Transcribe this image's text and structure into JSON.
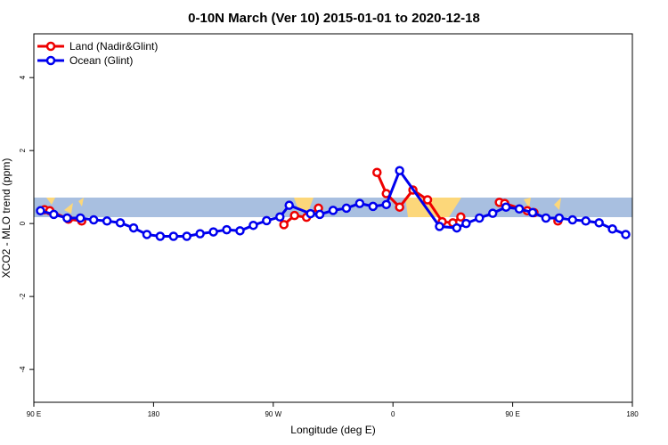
{
  "chart_data": {
    "type": "line",
    "title": "0-10N March (Ver 10)   2015-01-01 to 2020-12-18",
    "x_label": "Longitude (deg E)",
    "y_label": "XCO2 - MLO trend (ppm)",
    "xlim": [
      90,
      540
    ],
    "ylim": [
      -4.9,
      5.2
    ],
    "xticks": [
      {
        "value": 90,
        "label": "90 E"
      },
      180,
      {
        "value": 270,
        "label": "90 W"
      },
      {
        "value": 360,
        "label": "0"
      },
      {
        "value": 450,
        "label": "90 E"
      },
      {
        "value": 540,
        "label": "180"
      }
    ],
    "yticks": [
      -4,
      -2,
      0,
      2,
      4
    ],
    "grid": false,
    "legend": "top-left",
    "series": [
      {
        "name": "Land (Nadir&Glint)",
        "color": "#ee0000",
        "x": [
          98,
          102,
          116,
          126,
          null,
          278,
          286,
          295,
          304,
          null,
          348,
          355,
          365,
          375,
          386,
          397,
          405,
          411,
          null,
          440,
          444,
          461,
          466,
          null,
          484
        ],
        "values": [
          0.38,
          0.35,
          0.12,
          0.07,
          null,
          -0.03,
          0.22,
          0.17,
          0.42,
          null,
          1.4,
          0.82,
          0.45,
          0.92,
          0.65,
          0.05,
          0.02,
          0.18,
          null,
          0.58,
          0.55,
          0.35,
          0.3,
          null,
          0.07
        ]
      },
      {
        "name": "Ocean (Glint)",
        "color": "#0000ee",
        "x": [
          95,
          105,
          115,
          125,
          135,
          145,
          155,
          165,
          175,
          185,
          195,
          205,
          215,
          225,
          235,
          245,
          255,
          265,
          275,
          282,
          298,
          305,
          315,
          325,
          335,
          345,
          355,
          365,
          395,
          408,
          415,
          425,
          435,
          445,
          455,
          465,
          475,
          485,
          495,
          505,
          515,
          525,
          535
        ],
        "values": [
          0.35,
          0.25,
          0.15,
          0.15,
          0.1,
          0.07,
          0.02,
          -0.12,
          -0.3,
          -0.35,
          -0.35,
          -0.35,
          -0.28,
          -0.23,
          -0.17,
          -0.2,
          -0.05,
          0.08,
          0.18,
          0.5,
          0.27,
          0.25,
          0.36,
          0.42,
          0.55,
          0.47,
          0.52,
          1.45,
          -0.08,
          -0.12,
          0,
          0.15,
          0.28,
          0.45,
          0.4,
          0.3,
          0.15,
          0.15,
          0.1,
          0.07,
          0.02,
          -0.15,
          -0.3
        ]
      }
    ]
  }
}
